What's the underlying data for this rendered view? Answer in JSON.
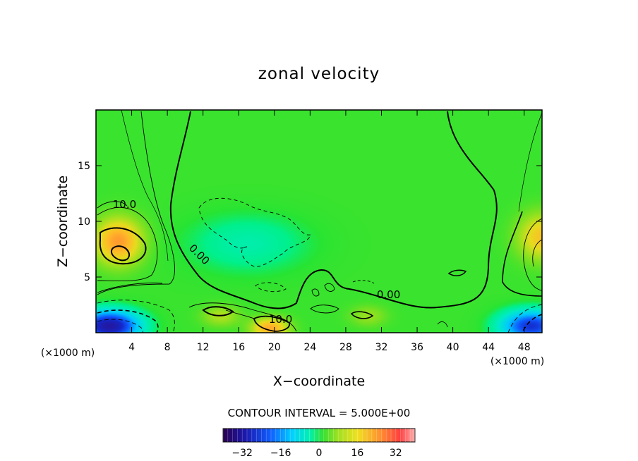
{
  "chart_data": {
    "type": "heatmap",
    "title": "zonal velocity",
    "xlabel": "X−coordinate",
    "ylabel": "Z−coordinate",
    "x_unit_left": "(×1000 m)",
    "x_unit_right": "(×1000 m)",
    "xlim": [
      0,
      50
    ],
    "ylim": [
      0,
      20
    ],
    "x_ticks": [
      4,
      8,
      12,
      16,
      20,
      24,
      28,
      32,
      36,
      40,
      44,
      48
    ],
    "y_ticks": [
      5,
      10,
      15
    ],
    "contour_interval_text": "CONTOUR INTERVAL = 5.000E+00",
    "contour_labels": [
      {
        "text": "10.0",
        "x": 3.2,
        "y": 11.2
      },
      {
        "text": "0.00",
        "x": 11.3,
        "y": 6.8
      },
      {
        "text": "0.00",
        "x": 32.8,
        "y": 3.1
      },
      {
        "text": "10.0",
        "x": 20.7,
        "y": 0.9
      }
    ],
    "colorbar": {
      "range": [
        -40,
        40
      ],
      "ticks": [
        "−32",
        "−16",
        "0",
        "16",
        "32"
      ],
      "tick_values": [
        -32,
        -16,
        0,
        16,
        32
      ]
    },
    "field_features": [
      {
        "kind": "jet",
        "x": 2.5,
        "z": 8.2,
        "value": 24
      },
      {
        "kind": "jet",
        "x": 50.0,
        "z": 8.6,
        "value": 18
      },
      {
        "kind": "jet",
        "x": 19.5,
        "z": 0.4,
        "value": 22
      },
      {
        "kind": "jet",
        "x": 14.0,
        "z": 1.5,
        "value": 10
      },
      {
        "kind": "jet",
        "x": 30.5,
        "z": 1.5,
        "value": 8
      },
      {
        "kind": "return_flow",
        "x": 1.5,
        "z": 0.6,
        "value": -32
      },
      {
        "kind": "return_flow",
        "x": 48.8,
        "z": 0.6,
        "value": -25
      },
      {
        "kind": "weak_negative",
        "x": 17.0,
        "z": 8.0,
        "value": -3
      },
      {
        "kind": "background",
        "value": 2
      }
    ]
  }
}
